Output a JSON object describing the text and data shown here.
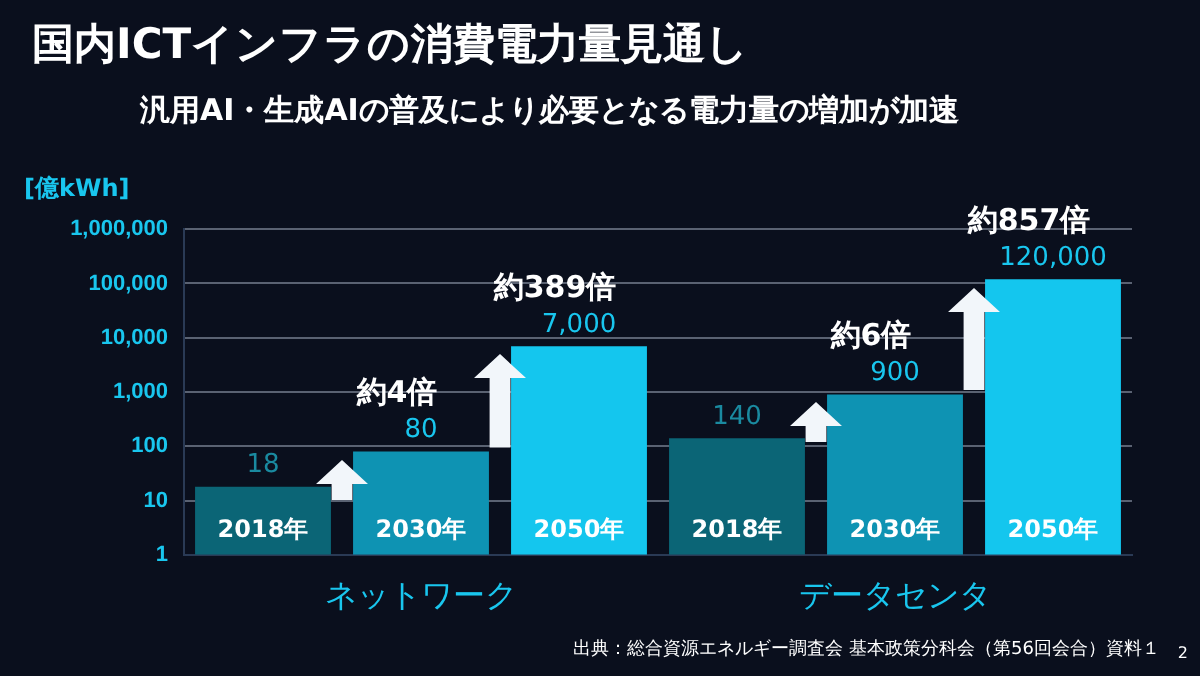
{
  "chart_data": {
    "type": "bar",
    "title": "国内ICTインフラの消費電力量見通し",
    "subtitle": "汎用AI・生成AIの普及により必要となる電力量の増加が加速",
    "ylabel": "[億kWh]",
    "categories": [
      "2018年",
      "2030年",
      "2050年",
      "2018年",
      "2030年",
      "2050年"
    ],
    "values": [
      18,
      80,
      7000,
      140,
      900,
      120000
    ],
    "colors": [
      "#0b6576",
      "#0e93b3",
      "#14c6ee",
      "#0b6576",
      "#0e93b3",
      "#14c6ee"
    ],
    "value_labels": [
      "18",
      "80",
      "7,000",
      "140",
      "900",
      "120,000"
    ],
    "log": "y",
    "ylim": [
      1,
      1000000
    ],
    "yticks": [
      1,
      10,
      100,
      {
        "value": 1000,
        "label": "1,000"
      },
      {
        "value": 10000,
        "label": "10,000"
      },
      {
        "value": 100000,
        "label": "100,000"
      },
      {
        "value": 1000000,
        "label": "1,000,000"
      }
    ],
    "grid": "y",
    "legend": false,
    "annotations": [
      "約4倍",
      "約389倍",
      "約6倍",
      "約857倍",
      "ネットワーク",
      "データセンタ",
      "出典：総合資源エネルギー調査会 基本政策分科会（第56回会合）資料１",
      "2"
    ]
  }
}
